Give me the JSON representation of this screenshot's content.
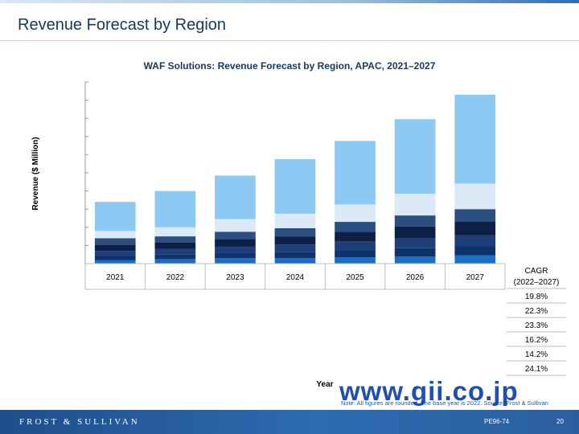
{
  "header": {
    "title": "Revenue Forecast by Region"
  },
  "chart_data": {
    "type": "bar",
    "stacked": true,
    "title": "WAF Solutions: Revenue Forecast by Region, APAC, 2021–2027",
    "xlabel": "Year",
    "ylabel": "Revenue ($ Million)",
    "categories": [
      "2021",
      "2022",
      "2023",
      "2024",
      "2025",
      "2026",
      "2027"
    ],
    "ylim": [
      0,
      10
    ],
    "grid": false,
    "legend": "none",
    "series": [
      {
        "values": [
          0.2,
          0.25,
          0.3,
          0.3,
          0.35,
          0.4,
          0.45
        ],
        "color": "#1a6fc4"
      },
      {
        "values": [
          0.2,
          0.25,
          0.3,
          0.35,
          0.4,
          0.45,
          0.5
        ],
        "color": "#10326a"
      },
      {
        "values": [
          0.3,
          0.3,
          0.35,
          0.4,
          0.45,
          0.55,
          0.6
        ],
        "color": "#1c3f7a"
      },
      {
        "values": [
          0.35,
          0.35,
          0.4,
          0.45,
          0.55,
          0.65,
          0.75
        ],
        "color": "#0d1f45"
      },
      {
        "values": [
          0.35,
          0.35,
          0.4,
          0.45,
          0.55,
          0.6,
          0.7
        ],
        "color": "#2a4f80"
      },
      {
        "values": [
          0.4,
          0.5,
          0.7,
          0.8,
          0.95,
          1.2,
          1.4
        ],
        "color": "#dce9f7"
      },
      {
        "values": [
          1.6,
          2.0,
          2.4,
          3.0,
          3.5,
          4.1,
          4.9
        ],
        "color": "#8ccaf4"
      }
    ],
    "table": {
      "header": [
        "CAGR",
        "(2022–2027)"
      ],
      "rows": [
        "19.8%",
        "22.3%",
        "23.3%",
        "16.2%",
        "14.2%",
        "24.1%"
      ]
    }
  },
  "note": "Note: All figures are rounded. The base year is 2022. Source: Frost & Sullivan",
  "footer": {
    "brand": "FROST & SULLIVAN",
    "code": "PE96-74",
    "page": "20"
  },
  "watermark": "www.gii.co.jp"
}
